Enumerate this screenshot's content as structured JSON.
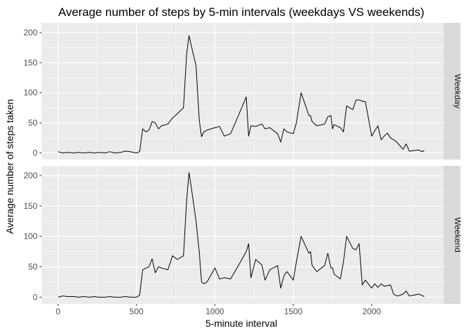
{
  "chart_data": {
    "type": "line",
    "title": "Average number of steps by 5-min intervals (weekdays VS weekends)",
    "xlabel": "5-minute interval",
    "ylabel": "Average number of steps taken",
    "xlim": [
      -105,
      2460
    ],
    "ylim": [
      -11,
      216
    ],
    "xticks": [
      0,
      500,
      1000,
      1500,
      2000
    ],
    "yticks": [
      0,
      50,
      100,
      150,
      200
    ],
    "grid": true,
    "line_color": "#000000",
    "panel_bg": "#ebebeb",
    "strip_bg": "#d9d9d9",
    "panels": [
      {
        "label": "Weekday",
        "x": [
          0,
          30,
          60,
          100,
          130,
          160,
          200,
          230,
          260,
          300,
          330,
          360,
          400,
          430,
          460,
          500,
          520,
          540,
          560,
          580,
          600,
          620,
          640,
          660,
          700,
          730,
          760,
          800,
          820,
          835,
          850,
          880,
          900,
          915,
          930,
          950,
          1000,
          1030,
          1060,
          1100,
          1150,
          1200,
          1215,
          1230,
          1260,
          1300,
          1320,
          1350,
          1400,
          1420,
          1440,
          1460,
          1500,
          1520,
          1550,
          1600,
          1610,
          1620,
          1650,
          1700,
          1720,
          1740,
          1750,
          1760,
          1800,
          1820,
          1840,
          1880,
          1900,
          1920,
          1940,
          1960,
          2000,
          2020,
          2040,
          2060,
          2080,
          2100,
          2120,
          2140,
          2160,
          2180,
          2200,
          2220,
          2240,
          2300,
          2320,
          2335
        ],
        "y": [
          2,
          0,
          1,
          0,
          1,
          0,
          1,
          0,
          1,
          0,
          2,
          0,
          1,
          3,
          2,
          0,
          2,
          40,
          35,
          38,
          52,
          50,
          40,
          45,
          48,
          58,
          65,
          75,
          165,
          195,
          178,
          145,
          55,
          27,
          35,
          38,
          42,
          44,
          28,
          32,
          62,
          93,
          28,
          45,
          44,
          48,
          40,
          42,
          32,
          18,
          40,
          35,
          32,
          50,
          100,
          62,
          62,
          52,
          45,
          48,
          60,
          62,
          40,
          47,
          42,
          35,
          78,
          72,
          88,
          88,
          86,
          85,
          28,
          37,
          45,
          22,
          28,
          33,
          25,
          22,
          18,
          12,
          6,
          15,
          3,
          5,
          2,
          4
        ],
        "color": "#000000"
      },
      {
        "label": "Weekend",
        "x": [
          0,
          30,
          60,
          100,
          130,
          160,
          200,
          230,
          260,
          300,
          330,
          360,
          400,
          430,
          460,
          500,
          520,
          540,
          560,
          580,
          600,
          620,
          640,
          660,
          700,
          730,
          760,
          800,
          820,
          835,
          850,
          880,
          900,
          915,
          930,
          950,
          1000,
          1030,
          1060,
          1100,
          1150,
          1200,
          1215,
          1230,
          1260,
          1300,
          1320,
          1350,
          1400,
          1420,
          1440,
          1460,
          1500,
          1520,
          1550,
          1600,
          1610,
          1620,
          1650,
          1700,
          1720,
          1740,
          1750,
          1760,
          1800,
          1820,
          1840,
          1880,
          1900,
          1920,
          1940,
          1960,
          2000,
          2020,
          2040,
          2060,
          2080,
          2100,
          2120,
          2140,
          2160,
          2180,
          2200,
          2220,
          2240,
          2300,
          2320,
          2335
        ],
        "y": [
          0,
          2,
          1,
          1,
          0,
          1,
          0,
          1,
          0,
          0,
          1,
          0,
          0,
          1,
          0,
          0,
          3,
          45,
          48,
          50,
          63,
          40,
          50,
          48,
          45,
          68,
          62,
          68,
          160,
          205,
          180,
          125,
          75,
          25,
          22,
          25,
          48,
          30,
          32,
          30,
          52,
          75,
          88,
          32,
          62,
          53,
          28,
          45,
          52,
          15,
          35,
          42,
          28,
          58,
          100,
          72,
          75,
          52,
          42,
          52,
          72,
          48,
          48,
          38,
          30,
          58,
          100,
          80,
          78,
          88,
          20,
          28,
          15,
          22,
          16,
          22,
          18,
          19,
          20,
          5,
          2,
          3,
          5,
          10,
          2,
          5,
          3,
          1
        ],
        "color": "#000000"
      }
    ]
  }
}
